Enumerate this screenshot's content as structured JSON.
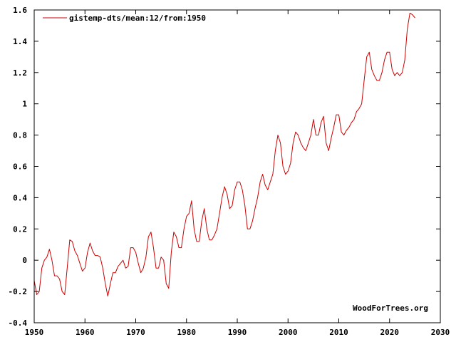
{
  "chart_data": {
    "type": "line",
    "title": "",
    "xlabel": "",
    "ylabel": "",
    "xlim": [
      1950,
      2030
    ],
    "ylim": [
      -0.4,
      1.6
    ],
    "x_ticks": [
      1950,
      1960,
      1970,
      1980,
      1990,
      2000,
      2010,
      2020,
      2030
    ],
    "y_ticks": [
      -0.4,
      -0.2,
      0,
      0.2,
      0.4,
      0.6,
      0.8,
      1,
      1.2,
      1.4,
      1.6
    ],
    "x_tick_labels": [
      "1950",
      "1960",
      "1970",
      "1980",
      "1990",
      "2000",
      "2010",
      "2020",
      "2030"
    ],
    "y_tick_labels": [
      "-0.4",
      "-0.2",
      "0",
      "0.2",
      "0.4",
      "0.6",
      "0.8",
      "1",
      "1.2",
      "1.4",
      "1.6"
    ],
    "grid": false,
    "legend_position": "top-left",
    "watermark": "WoodForTrees.org",
    "series": [
      {
        "name": "gistemp-dts/mean:12/from:1950",
        "color": "#cc0000",
        "x": [
          1950.0,
          1950.5,
          1951.0,
          1951.5,
          1952.0,
          1952.5,
          1953.0,
          1953.5,
          1954.0,
          1954.5,
          1955.0,
          1955.5,
          1956.0,
          1956.5,
          1957.0,
          1957.5,
          1958.0,
          1958.5,
          1959.0,
          1959.5,
          1960.0,
          1960.5,
          1961.0,
          1961.5,
          1962.0,
          1962.5,
          1963.0,
          1963.5,
          1964.0,
          1964.5,
          1965.0,
          1965.5,
          1966.0,
          1966.5,
          1967.0,
          1967.5,
          1968.0,
          1968.5,
          1969.0,
          1969.5,
          1970.0,
          1970.5,
          1971.0,
          1971.5,
          1972.0,
          1972.5,
          1973.0,
          1973.5,
          1974.0,
          1974.5,
          1975.0,
          1975.5,
          1976.0,
          1976.5,
          1977.0,
          1977.5,
          1978.0,
          1978.5,
          1979.0,
          1979.5,
          1980.0,
          1980.5,
          1981.0,
          1981.5,
          1982.0,
          1982.5,
          1983.0,
          1983.5,
          1984.0,
          1984.5,
          1985.0,
          1985.5,
          1986.0,
          1986.5,
          1987.0,
          1987.5,
          1988.0,
          1988.5,
          1989.0,
          1989.5,
          1990.0,
          1990.5,
          1991.0,
          1991.5,
          1992.0,
          1992.5,
          1993.0,
          1993.5,
          1994.0,
          1994.5,
          1995.0,
          1995.5,
          1996.0,
          1996.5,
          1997.0,
          1997.5,
          1998.0,
          1998.5,
          1999.0,
          1999.5,
          2000.0,
          2000.5,
          2001.0,
          2001.5,
          2002.0,
          2002.5,
          2003.0,
          2003.5,
          2004.0,
          2004.5,
          2005.0,
          2005.5,
          2006.0,
          2006.5,
          2007.0,
          2007.5,
          2008.0,
          2008.5,
          2009.0,
          2009.5,
          2010.0,
          2010.5,
          2011.0,
          2011.5,
          2012.0,
          2012.5,
          2013.0,
          2013.5,
          2014.0,
          2014.5,
          2015.0,
          2015.5,
          2016.0,
          2016.5,
          2017.0,
          2017.5,
          2018.0,
          2018.5,
          2019.0,
          2019.5,
          2020.0,
          2020.5,
          2021.0,
          2021.5,
          2022.0,
          2022.5,
          2023.0,
          2023.5,
          2024.0,
          2024.5,
          2025.0
        ],
        "values": [
          -0.13,
          -0.22,
          -0.2,
          -0.05,
          0.0,
          0.02,
          0.07,
          0.0,
          -0.1,
          -0.1,
          -0.12,
          -0.2,
          -0.22,
          -0.05,
          0.13,
          0.12,
          0.06,
          0.03,
          -0.02,
          -0.07,
          -0.05,
          0.05,
          0.11,
          0.06,
          0.03,
          0.03,
          0.02,
          -0.05,
          -0.15,
          -0.23,
          -0.15,
          -0.08,
          -0.08,
          -0.04,
          -0.02,
          0.0,
          -0.05,
          -0.04,
          0.08,
          0.08,
          0.05,
          -0.02,
          -0.08,
          -0.05,
          0.02,
          0.15,
          0.18,
          0.08,
          -0.05,
          -0.05,
          0.02,
          0.0,
          -0.15,
          -0.18,
          0.05,
          0.18,
          0.15,
          0.08,
          0.08,
          0.2,
          0.28,
          0.3,
          0.38,
          0.2,
          0.12,
          0.12,
          0.25,
          0.33,
          0.2,
          0.13,
          0.13,
          0.16,
          0.2,
          0.3,
          0.4,
          0.47,
          0.42,
          0.33,
          0.35,
          0.45,
          0.5,
          0.5,
          0.45,
          0.35,
          0.2,
          0.2,
          0.25,
          0.33,
          0.4,
          0.5,
          0.55,
          0.48,
          0.45,
          0.5,
          0.55,
          0.7,
          0.8,
          0.75,
          0.6,
          0.55,
          0.57,
          0.62,
          0.75,
          0.82,
          0.8,
          0.75,
          0.72,
          0.7,
          0.75,
          0.8,
          0.9,
          0.8,
          0.8,
          0.88,
          0.92,
          0.75,
          0.7,
          0.78,
          0.85,
          0.93,
          0.93,
          0.82,
          0.8,
          0.83,
          0.85,
          0.88,
          0.9,
          0.95,
          0.97,
          1.0,
          1.15,
          1.3,
          1.33,
          1.22,
          1.18,
          1.15,
          1.15,
          1.2,
          1.28,
          1.33,
          1.33,
          1.22,
          1.18,
          1.2,
          1.18,
          1.2,
          1.28,
          1.48,
          1.58,
          1.57,
          1.55
        ]
      }
    ]
  }
}
